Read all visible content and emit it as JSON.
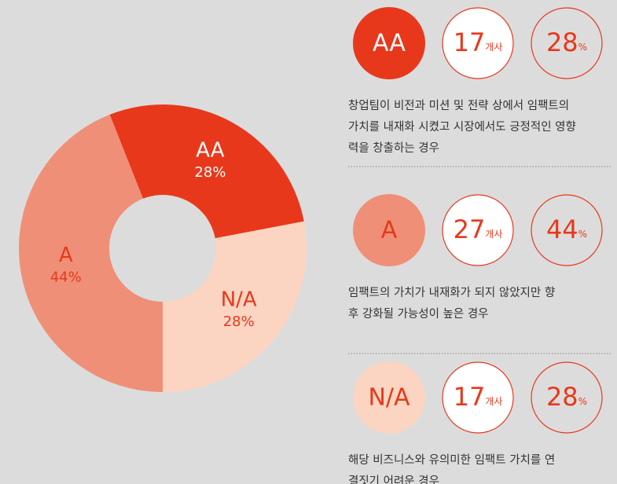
{
  "chart_data": {
    "type": "donut",
    "categories": [
      "AA",
      "N/A",
      "A"
    ],
    "values": [
      28,
      28,
      44
    ],
    "value_labels": [
      "28%",
      "28%",
      "44%"
    ],
    "colors": [
      "#e8381b",
      "#fbd5c2",
      "#f08f77"
    ],
    "label_colors": [
      "#ffffff",
      "#e8381b",
      "#e8381b"
    ]
  },
  "panels": [
    {
      "category": "AA",
      "count": 17,
      "percent": 28,
      "description": [
        "창업팀이 비전과 미션 및 전략 상에서 임팩트의",
        "가치를 내재화 시켰고 시장에서도 긍정적인 영향",
        "력을 창출하는 경우"
      ]
    },
    {
      "category": "A",
      "count": 27,
      "percent": 44,
      "description": [
        "임팩트의 가치가 내재화가 되지 않았지만 향",
        "후 강화될 가능성이 높은 경우"
      ]
    },
    {
      "category": "N/A",
      "count": 17,
      "percent": 28,
      "description": [
        "해당 비즈니스와 유의미한 임팩트 가치를 연",
        "결짓기 어려운 경우"
      ]
    }
  ],
  "count_unit": "개사",
  "percent_unit": "%"
}
